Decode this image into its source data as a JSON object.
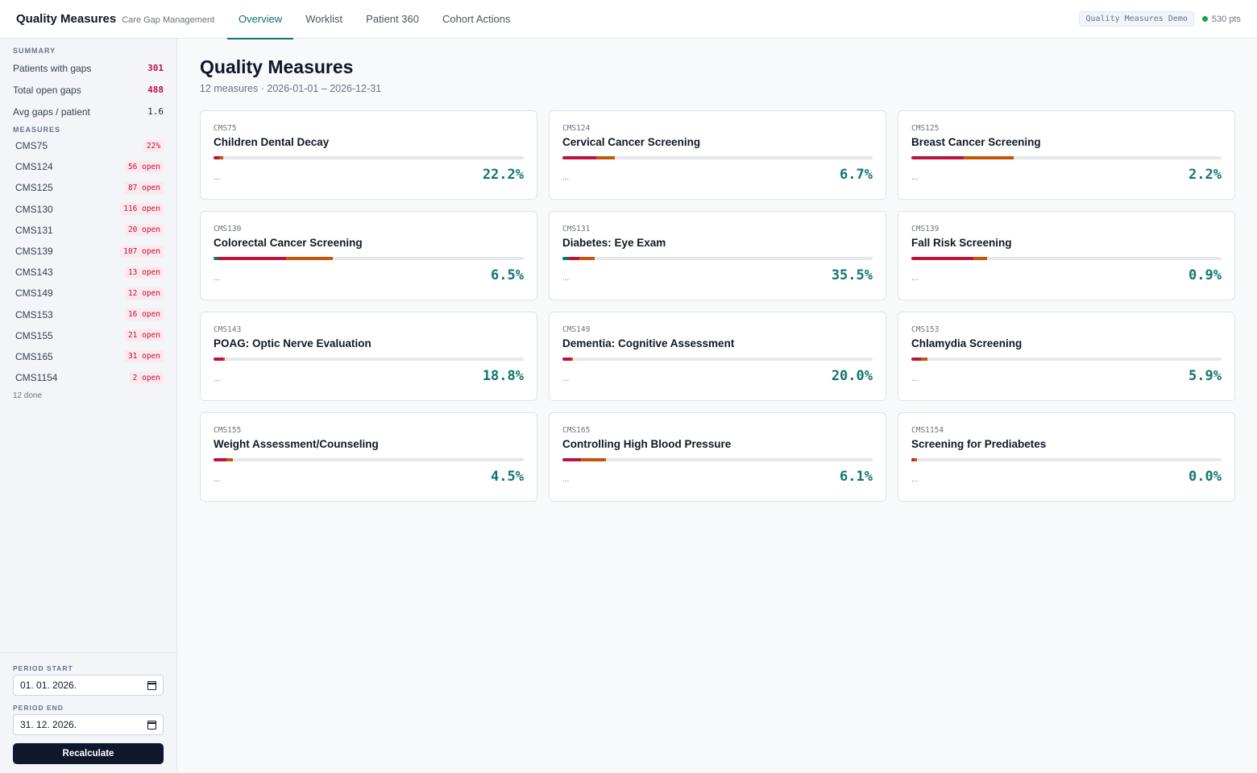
{
  "header": {
    "title": "Quality Measures",
    "subtitle": "Care Gap Management",
    "tabs": [
      {
        "label": "Overview",
        "active": true
      },
      {
        "label": "Worklist",
        "active": false
      },
      {
        "label": "Patient 360",
        "active": false
      },
      {
        "label": "Cohort Actions",
        "active": false
      }
    ],
    "demo_label": "Quality Measures Demo",
    "points": "530 pts"
  },
  "sidebar": {
    "summary_label": "SUMMARY",
    "summary": [
      {
        "label": "Patients with gaps",
        "value": "301"
      },
      {
        "label": "Total open gaps",
        "value": "488"
      },
      {
        "label": "Avg gaps / patient",
        "value": "1.6"
      }
    ],
    "measures_label": "MEASURES",
    "measures": [
      {
        "code": "CMS75",
        "badge": "22%"
      },
      {
        "code": "CMS124",
        "badge": "56 open"
      },
      {
        "code": "CMS125",
        "badge": "87 open"
      },
      {
        "code": "CMS130",
        "badge": "116 open"
      },
      {
        "code": "CMS131",
        "badge": "20 open"
      },
      {
        "code": "CMS139",
        "badge": "107 open"
      },
      {
        "code": "CMS143",
        "badge": "13 open"
      },
      {
        "code": "CMS149",
        "badge": "12 open"
      },
      {
        "code": "CMS153",
        "badge": "16 open"
      },
      {
        "code": "CMS155",
        "badge": "21 open"
      },
      {
        "code": "CMS165",
        "badge": "31 open"
      },
      {
        "code": "CMS1154",
        "badge": "2 open"
      }
    ],
    "done_text": "12 done",
    "period_start_label": "PERIOD START",
    "period_start_value": "01. 01. 2026.",
    "period_end_label": "PERIOD END",
    "period_end_value": "31. 12. 2026.",
    "recalculate_label": "Recalculate"
  },
  "main": {
    "title": "Quality Measures",
    "subtitle": "12 measures · 2026-01-01 – 2026-12-31",
    "colors": {
      "met": "#0f766e",
      "gap": "#be123c",
      "pending": "#c2570c"
    },
    "cards": [
      {
        "code": "CMS75",
        "name": "Children Dental Decay",
        "pct": "22.2%",
        "ellipsis": "...",
        "met": 0.0,
        "gap": 0.018,
        "pending": 0.012
      },
      {
        "code": "CMS124",
        "name": "Cervical Cancer Screening",
        "pct": "6.7%",
        "ellipsis": "...",
        "met": 0.0,
        "gap": 0.11,
        "pending": 0.06
      },
      {
        "code": "CMS125",
        "name": "Breast Cancer Screening",
        "pct": "2.2%",
        "ellipsis": "...",
        "met": 0.0,
        "gap": 0.17,
        "pending": 0.16
      },
      {
        "code": "CMS130",
        "name": "Colorectal Cancer Screening",
        "pct": "6.5%",
        "ellipsis": "...",
        "met": 0.015,
        "gap": 0.22,
        "pending": 0.15
      },
      {
        "code": "CMS131",
        "name": "Diabetes: Eye Exam",
        "pct": "35.5%",
        "ellipsis": "...",
        "met": 0.02,
        "gap": 0.035,
        "pending": 0.05
      },
      {
        "code": "CMS139",
        "name": "Fall Risk Screening",
        "pct": "0.9%",
        "ellipsis": "...",
        "met": 0.0,
        "gap": 0.2,
        "pending": 0.045
      },
      {
        "code": "CMS143",
        "name": "POAG: Optic Nerve Evaluation",
        "pct": "18.8%",
        "ellipsis": "...",
        "met": 0.0,
        "gap": 0.03,
        "pending": 0.006
      },
      {
        "code": "CMS149",
        "name": "Dementia: Cognitive Assessment",
        "pct": "20.0%",
        "ellipsis": "...",
        "met": 0.0,
        "gap": 0.028,
        "pending": 0.006
      },
      {
        "code": "CMS153",
        "name": "Chlamydia Screening",
        "pct": "5.9%",
        "ellipsis": "...",
        "met": 0.0,
        "gap": 0.03,
        "pending": 0.022
      },
      {
        "code": "CMS155",
        "name": "Weight Assessment/Counseling",
        "pct": "4.5%",
        "ellipsis": "...",
        "met": 0.0,
        "gap": 0.042,
        "pending": 0.02
      },
      {
        "code": "CMS165",
        "name": "Controlling High Blood Pressure",
        "pct": "6.1%",
        "ellipsis": "...",
        "met": 0.0,
        "gap": 0.06,
        "pending": 0.08
      },
      {
        "code": "CMS1154",
        "name": "Screening for Prediabetes",
        "pct": "0.0%",
        "ellipsis": "...",
        "met": 0.0,
        "gap": 0.008,
        "pending": 0.01
      }
    ]
  }
}
